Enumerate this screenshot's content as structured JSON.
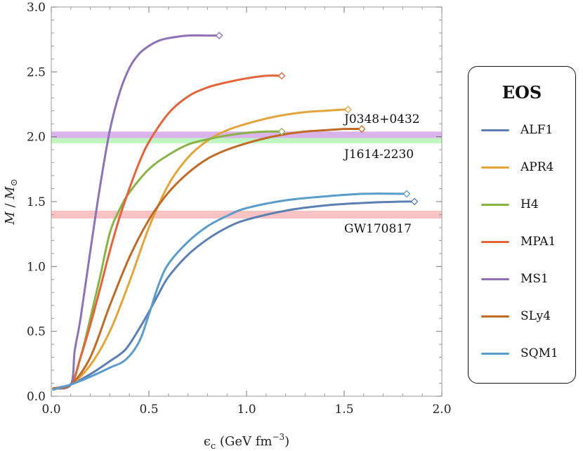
{
  "chart_data": {
    "type": "line",
    "title": "",
    "xlabel": "ϵ_c (GeV fm^−3)",
    "ylabel": "M / M⊙",
    "xlim": [
      0.0,
      2.0
    ],
    "ylim": [
      0.0,
      3.0
    ],
    "x_ticks": [
      "0.0",
      "0.5",
      "1.0",
      "1.5",
      "2.0"
    ],
    "y_ticks": [
      "0.0",
      "0.5",
      "1.0",
      "1.5",
      "2.0",
      "2.5",
      "3.0"
    ],
    "grid": false,
    "legend": {
      "title": "EOS",
      "placement": "right"
    },
    "bands": [
      {
        "label": "J0348+0432",
        "ymin": 1.99,
        "ymax": 2.04,
        "color": "#d9b3ea"
      },
      {
        "label": "J1614-2230",
        "ymin": 1.95,
        "ymax": 1.99,
        "color": "#bff5bf"
      },
      {
        "label": "GW170817",
        "ymin": 1.37,
        "ymax": 1.43,
        "color": "#f9c3c3"
      }
    ],
    "series": [
      {
        "name": "ALF1",
        "color": "#5b7fb4",
        "x": [
          0.01,
          0.1,
          0.2,
          0.3,
          0.38,
          0.45,
          0.5,
          0.55,
          0.6,
          0.7,
          0.8,
          0.9,
          1.0,
          1.2,
          1.4,
          1.6,
          1.8,
          1.86
        ],
        "y": [
          0.06,
          0.09,
          0.17,
          0.27,
          0.36,
          0.52,
          0.65,
          0.79,
          0.92,
          1.09,
          1.21,
          1.3,
          1.36,
          1.43,
          1.47,
          1.49,
          1.5,
          1.5
        ]
      },
      {
        "name": "APR4",
        "color": "#e3a43c",
        "x": [
          0.01,
          0.1,
          0.2,
          0.3,
          0.4,
          0.5,
          0.6,
          0.7,
          0.8,
          0.9,
          1.0,
          1.1,
          1.2,
          1.3,
          1.4,
          1.5,
          1.52
        ],
        "y": [
          0.06,
          0.09,
          0.24,
          0.5,
          0.88,
          1.3,
          1.63,
          1.84,
          1.97,
          2.05,
          2.1,
          2.14,
          2.17,
          2.19,
          2.2,
          2.21,
          2.21
        ]
      },
      {
        "name": "H4",
        "color": "#88b347",
        "x": [
          0.01,
          0.1,
          0.15,
          0.2,
          0.25,
          0.3,
          0.35,
          0.4,
          0.5,
          0.6,
          0.7,
          0.8,
          0.9,
          1.0,
          1.1,
          1.18
        ],
        "y": [
          0.06,
          0.09,
          0.3,
          0.6,
          0.92,
          1.26,
          1.44,
          1.57,
          1.75,
          1.86,
          1.94,
          1.98,
          2.01,
          2.03,
          2.04,
          2.04
        ]
      },
      {
        "name": "MPA1",
        "color": "#e3633a",
        "x": [
          0.01,
          0.1,
          0.15,
          0.2,
          0.25,
          0.3,
          0.35,
          0.4,
          0.45,
          0.5,
          0.6,
          0.7,
          0.8,
          0.9,
          1.0,
          1.1,
          1.18
        ],
        "y": [
          0.06,
          0.09,
          0.3,
          0.55,
          0.83,
          1.12,
          1.38,
          1.6,
          1.8,
          1.96,
          2.18,
          2.31,
          2.38,
          2.42,
          2.45,
          2.47,
          2.47
        ]
      },
      {
        "name": "MS1",
        "color": "#8c73b8",
        "x": [
          0.01,
          0.1,
          0.12,
          0.15,
          0.2,
          0.25,
          0.3,
          0.35,
          0.4,
          0.45,
          0.5,
          0.55,
          0.6,
          0.7,
          0.8,
          0.86
        ],
        "y": [
          0.06,
          0.09,
          0.35,
          0.6,
          1.12,
          1.62,
          2.05,
          2.34,
          2.53,
          2.64,
          2.7,
          2.74,
          2.76,
          2.78,
          2.78,
          2.78
        ]
      },
      {
        "name": "SLy4",
        "color": "#bf6a26",
        "x": [
          0.01,
          0.1,
          0.2,
          0.3,
          0.4,
          0.5,
          0.6,
          0.7,
          0.8,
          0.9,
          1.0,
          1.1,
          1.2,
          1.3,
          1.4,
          1.5,
          1.59
        ],
        "y": [
          0.06,
          0.09,
          0.3,
          0.7,
          1.07,
          1.36,
          1.57,
          1.72,
          1.83,
          1.9,
          1.95,
          1.99,
          2.02,
          2.04,
          2.05,
          2.06,
          2.06
        ]
      },
      {
        "name": "SQM1",
        "color": "#5a9ccb",
        "x": [
          0.01,
          0.1,
          0.2,
          0.3,
          0.38,
          0.45,
          0.5,
          0.55,
          0.6,
          0.7,
          0.8,
          0.9,
          1.0,
          1.2,
          1.4,
          1.6,
          1.82
        ],
        "y": [
          0.05,
          0.09,
          0.15,
          0.22,
          0.28,
          0.42,
          0.63,
          0.86,
          1.02,
          1.19,
          1.31,
          1.39,
          1.45,
          1.51,
          1.54,
          1.56,
          1.56
        ]
      }
    ]
  }
}
